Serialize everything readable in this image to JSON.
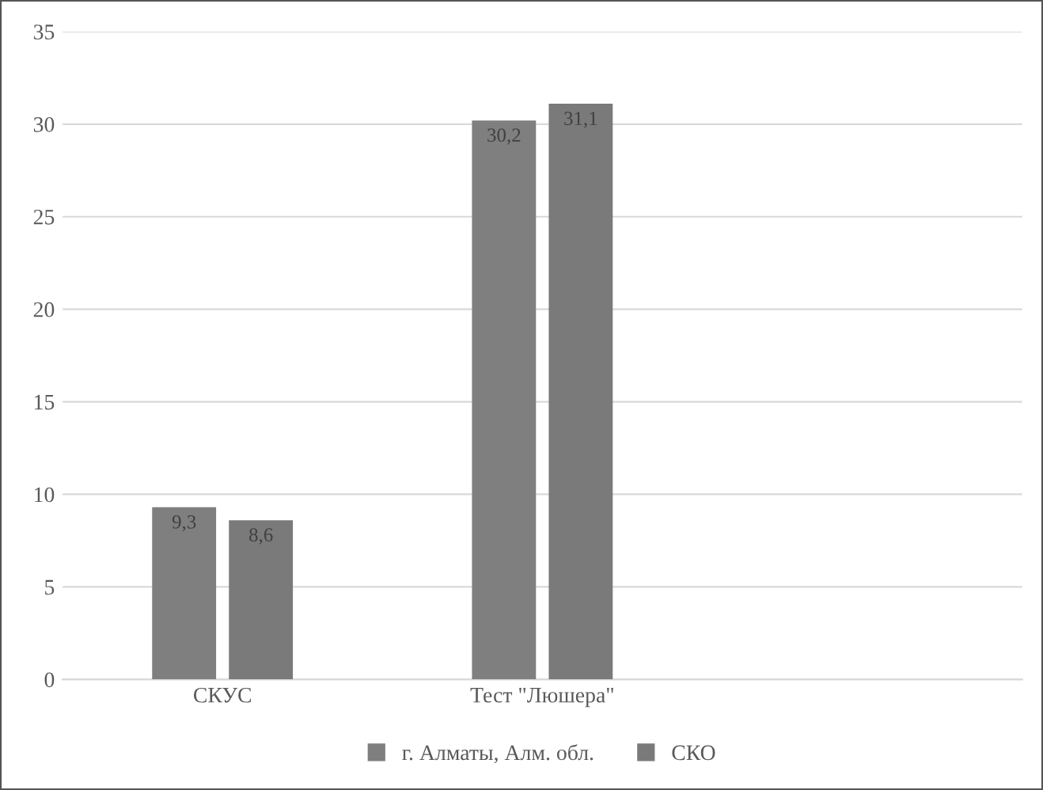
{
  "chart_data": {
    "type": "bar",
    "categories": [
      "СКУС",
      "Тест \"Люшера\"",
      null
    ],
    "series": [
      {
        "name": "г. Алматы, Алм. обл.",
        "color": "#7f7f7f",
        "values": [
          9.3,
          30.2,
          null
        ],
        "value_labels": [
          "9,3",
          "30,2",
          null
        ]
      },
      {
        "name": "СКО",
        "color": "#7a7a7a",
        "values": [
          8.6,
          31.1,
          null
        ],
        "value_labels": [
          "8,6",
          "31,1",
          null
        ]
      }
    ],
    "ylim": [
      0,
      35
    ],
    "yticks": [
      0,
      5,
      10,
      15,
      20,
      25,
      30,
      35
    ],
    "grid": "y",
    "legend": "bottom"
  }
}
